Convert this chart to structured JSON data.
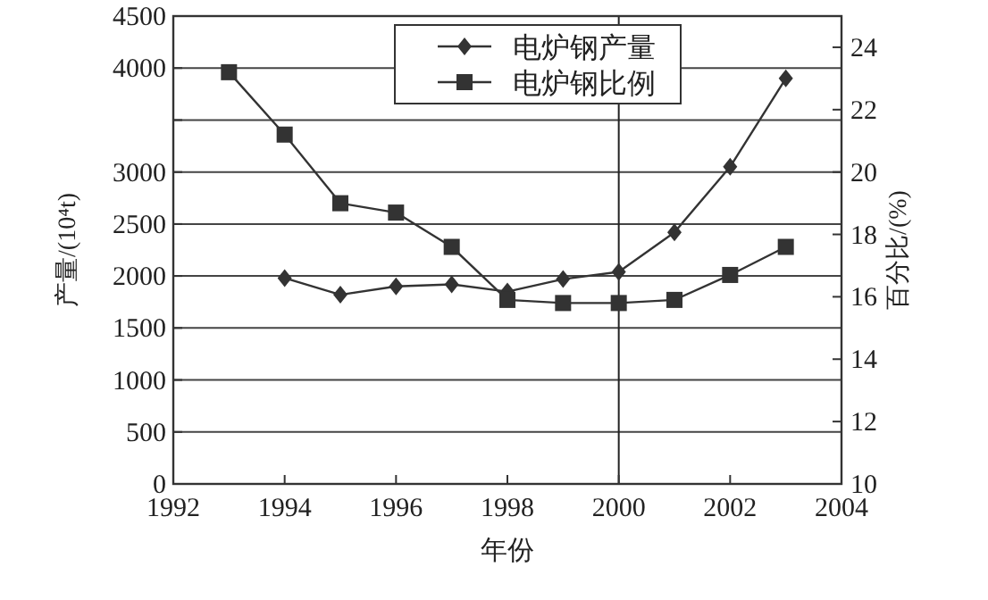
{
  "chart_data": {
    "type": "line",
    "xlabel": "年份",
    "ylabel": "产量/(10⁴t)",
    "y2label": "百分比/(%)",
    "x": [
      1993,
      1994,
      1995,
      1996,
      1997,
      1998,
      1999,
      2000,
      2001,
      2002,
      2003
    ],
    "series": [
      {
        "name": "电炉钢产量",
        "color": "#333333",
        "marker": "diamond",
        "axis": "y",
        "values": [
          null,
          1980,
          1820,
          1900,
          1920,
          1850,
          1970,
          2040,
          2420,
          3050,
          3900
        ]
      },
      {
        "name": "电炉钢比例",
        "color": "#333333",
        "marker": "square",
        "axis": "y2",
        "values": [
          23.2,
          21.2,
          19.0,
          18.7,
          17.6,
          15.9,
          15.8,
          15.8,
          15.9,
          16.7,
          17.6
        ]
      }
    ],
    "xlim": [
      1992,
      2004
    ],
    "xticks": [
      1992,
      1994,
      1996,
      1998,
      2000,
      2002,
      2004
    ],
    "ylim": [
      0,
      4500
    ],
    "yticks": [
      0,
      500,
      1000,
      1500,
      2000,
      2500,
      3000,
      {
        "value": 3500,
        "label": null
      },
      4000,
      4500
    ],
    "y2lim": [
      10,
      25
    ],
    "y2ticks": [
      10,
      12,
      14,
      16,
      18,
      20,
      22,
      24
    ],
    "grid": "y",
    "legend": "top right",
    "line_style": "solid",
    "ref_lines": [
      {
        "axis": "x",
        "value": 2000,
        "color": "#222222"
      }
    ]
  }
}
